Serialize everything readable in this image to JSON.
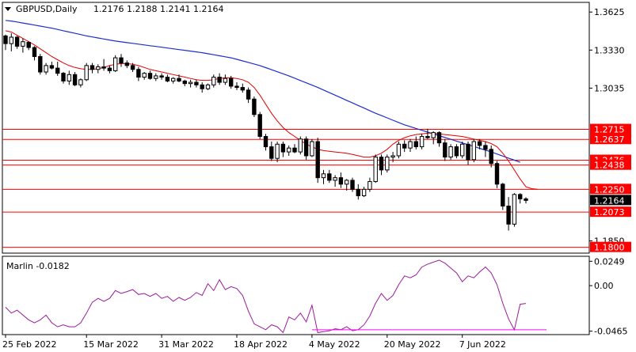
{
  "header": {
    "symbol_label": "GBPUSD,Daily",
    "ohlc_label": "1.2176 1.2188 1.2141 1.2164"
  },
  "indicator": {
    "label": "Marlin -0.0182"
  },
  "colors": {
    "background": "#ffffff",
    "candle": "#000000",
    "level_line": "#ff0000",
    "ma_fast": "#e00000",
    "ma_slow": "#1e2ecc",
    "oscillator": "#9b1c9b",
    "support_line": "#ff00ff",
    "price_tag_bg": "#000000",
    "level_tag_bg": "#ff0000"
  },
  "chart_data": {
    "type": "candlestick",
    "price_axis": {
      "ticks": [
        1.3625,
        1.333,
        1.3035,
        1.185
      ],
      "range": [
        1.1755,
        1.37
      ]
    },
    "current_price": 1.2164,
    "levels": [
      1.2715,
      1.2637,
      1.2476,
      1.2438,
      1.225,
      1.2073,
      1.18
    ],
    "level_tags": [
      "1.2715",
      "1.2637",
      "1.2476",
      "1.2438",
      "1.2250",
      "1.2073",
      "1.1800"
    ],
    "current_price_tag": "1.2164",
    "x_labels": [
      "25 Feb 2022",
      "15 Mar 2022",
      "31 Mar 2022",
      "18 Apr 2022",
      "4 May 2022",
      "20 May 2022",
      "7 Jun 2022"
    ],
    "x_label_index": [
      0,
      14,
      27,
      40,
      53,
      66,
      79
    ],
    "candles": [
      [
        1.344,
        1.345,
        1.333,
        1.338
      ],
      [
        1.338,
        1.346,
        1.332,
        1.343
      ],
      [
        1.343,
        1.344,
        1.334,
        1.336
      ],
      [
        1.336,
        1.342,
        1.331,
        1.3395
      ],
      [
        1.339,
        1.34,
        1.333,
        1.335
      ],
      [
        1.335,
        1.336,
        1.325,
        1.328
      ],
      [
        1.328,
        1.33,
        1.314,
        1.316
      ],
      [
        1.316,
        1.323,
        1.314,
        1.321
      ],
      [
        1.321,
        1.324,
        1.318,
        1.319
      ],
      [
        1.319,
        1.324,
        1.313,
        1.315
      ],
      [
        1.315,
        1.316,
        1.307,
        1.309
      ],
      [
        1.309,
        1.317,
        1.306,
        1.314
      ],
      [
        1.314,
        1.316,
        1.305,
        1.306
      ],
      [
        1.306,
        1.311,
        1.304,
        1.31
      ],
      [
        1.31,
        1.323,
        1.309,
        1.321
      ],
      [
        1.321,
        1.323,
        1.315,
        1.318
      ],
      [
        1.318,
        1.322,
        1.315,
        1.32
      ],
      [
        1.32,
        1.326,
        1.317,
        1.319
      ],
      [
        1.319,
        1.321,
        1.315,
        1.317
      ],
      [
        1.317,
        1.329,
        1.316,
        1.327
      ],
      [
        1.327,
        1.33,
        1.32,
        1.323
      ],
      [
        1.323,
        1.325,
        1.319,
        1.321
      ],
      [
        1.321,
        1.323,
        1.316,
        1.318
      ],
      [
        1.318,
        1.32,
        1.309,
        1.312
      ],
      [
        1.312,
        1.316,
        1.31,
        1.315
      ],
      [
        1.315,
        1.317,
        1.31,
        1.311
      ],
      [
        1.311,
        1.315,
        1.309,
        1.313
      ],
      [
        1.313,
        1.315,
        1.31,
        1.312
      ],
      [
        1.312,
        1.314,
        1.308,
        1.309
      ],
      [
        1.309,
        1.312,
        1.307,
        1.311
      ],
      [
        1.311,
        1.314,
        1.308,
        1.309
      ],
      [
        1.309,
        1.31,
        1.305,
        1.307
      ],
      [
        1.307,
        1.31,
        1.304,
        1.308
      ],
      [
        1.308,
        1.31,
        1.304,
        1.306
      ],
      [
        1.306,
        1.308,
        1.3,
        1.303
      ],
      [
        1.303,
        1.307,
        1.302,
        1.306
      ],
      [
        1.306,
        1.314,
        1.304,
        1.312
      ],
      [
        1.312,
        1.315,
        1.306,
        1.308
      ],
      [
        1.308,
        1.314,
        1.306,
        1.311
      ],
      [
        1.311,
        1.313,
        1.303,
        1.305
      ],
      [
        1.305,
        1.308,
        1.302,
        1.304
      ],
      [
        1.304,
        1.307,
        1.3,
        1.302
      ],
      [
        1.302,
        1.304,
        1.292,
        1.295
      ],
      [
        1.295,
        1.297,
        1.281,
        1.283
      ],
      [
        1.283,
        1.285,
        1.264,
        1.266
      ],
      [
        1.266,
        1.268,
        1.255,
        1.258
      ],
      [
        1.258,
        1.262,
        1.247,
        1.249
      ],
      [
        1.249,
        1.262,
        1.246,
        1.26
      ],
      [
        1.26,
        1.262,
        1.25,
        1.254
      ],
      [
        1.254,
        1.259,
        1.251,
        1.257
      ],
      [
        1.257,
        1.26,
        1.253,
        1.254
      ],
      [
        1.254,
        1.266,
        1.252,
        1.264
      ],
      [
        1.264,
        1.266,
        1.248,
        1.251
      ],
      [
        1.251,
        1.264,
        1.25,
        1.262
      ],
      [
        1.262,
        1.265,
        1.23,
        1.234
      ],
      [
        1.234,
        1.24,
        1.229,
        1.237
      ],
      [
        1.237,
        1.24,
        1.23,
        1.232
      ],
      [
        1.232,
        1.236,
        1.227,
        1.234
      ],
      [
        1.234,
        1.238,
        1.226,
        1.229
      ],
      [
        1.229,
        1.233,
        1.224,
        1.232
      ],
      [
        1.232,
        1.234,
        1.223,
        1.225
      ],
      [
        1.225,
        1.229,
        1.217,
        1.22
      ],
      [
        1.22,
        1.227,
        1.219,
        1.225
      ],
      [
        1.225,
        1.234,
        1.223,
        1.231
      ],
      [
        1.231,
        1.252,
        1.23,
        1.25
      ],
      [
        1.25,
        1.252,
        1.236,
        1.24
      ],
      [
        1.24,
        1.252,
        1.238,
        1.25
      ],
      [
        1.25,
        1.254,
        1.246,
        1.251
      ],
      [
        1.251,
        1.262,
        1.249,
        1.26
      ],
      [
        1.26,
        1.263,
        1.254,
        1.257
      ],
      [
        1.257,
        1.264,
        1.254,
        1.262
      ],
      [
        1.262,
        1.266,
        1.256,
        1.258
      ],
      [
        1.258,
        1.268,
        1.256,
        1.266
      ],
      [
        1.266,
        1.272,
        1.264,
        1.265
      ],
      [
        1.265,
        1.27,
        1.26,
        1.269
      ],
      [
        1.269,
        1.27,
        1.258,
        1.261
      ],
      [
        1.261,
        1.264,
        1.247,
        1.25
      ],
      [
        1.25,
        1.26,
        1.248,
        1.258
      ],
      [
        1.258,
        1.26,
        1.249,
        1.251
      ],
      [
        1.251,
        1.262,
        1.249,
        1.26
      ],
      [
        1.26,
        1.262,
        1.244,
        1.248
      ],
      [
        1.248,
        1.264,
        1.246,
        1.262
      ],
      [
        1.262,
        1.264,
        1.256,
        1.259
      ],
      [
        1.259,
        1.262,
        1.25,
        1.256
      ],
      [
        1.256,
        1.259,
        1.242,
        1.245
      ],
      [
        1.245,
        1.247,
        1.226,
        1.229
      ],
      [
        1.229,
        1.23,
        1.209,
        1.212
      ],
      [
        1.212,
        1.219,
        1.193,
        1.198
      ],
      [
        1.198,
        1.222,
        1.196,
        1.221
      ],
      [
        1.221,
        1.222,
        1.214,
        1.2176
      ],
      [
        1.2176,
        1.2188,
        1.2141,
        1.2164
      ]
    ],
    "ma_fast": [
      1.348,
      1.347,
      1.3445,
      1.342,
      1.3395,
      1.337,
      1.334,
      1.331,
      1.328,
      1.3255,
      1.323,
      1.321,
      1.3195,
      1.3185,
      1.318,
      1.318,
      1.3185,
      1.3195,
      1.321,
      1.322,
      1.3225,
      1.3225,
      1.322,
      1.321,
      1.3195,
      1.318,
      1.317,
      1.316,
      1.315,
      1.314,
      1.313,
      1.312,
      1.311,
      1.31,
      1.3095,
      1.3095,
      1.31,
      1.311,
      1.3115,
      1.3115,
      1.311,
      1.31,
      1.308,
      1.304,
      1.298,
      1.291,
      1.284,
      1.278,
      1.273,
      1.269,
      1.266,
      1.263,
      1.26,
      1.258,
      1.256,
      1.255,
      1.2545,
      1.254,
      1.2535,
      1.253,
      1.252,
      1.251,
      1.25,
      1.25,
      1.251,
      1.253,
      1.256,
      1.26,
      1.263,
      1.265,
      1.2665,
      1.2675,
      1.268,
      1.2685,
      1.2685,
      1.268,
      1.2675,
      1.267,
      1.2665,
      1.266,
      1.265,
      1.264,
      1.263,
      1.262,
      1.2605,
      1.258,
      1.253,
      1.247,
      1.24,
      1.233,
      1.227,
      1.2255,
      1.225
    ],
    "ma_slow": [
      1.356,
      1.3555,
      1.3548,
      1.354,
      1.3532,
      1.3524,
      1.3516,
      1.3508,
      1.35,
      1.349,
      1.348,
      1.347,
      1.346,
      1.345,
      1.344,
      1.3432,
      1.3424,
      1.3416,
      1.3408,
      1.34,
      1.3394,
      1.3388,
      1.3382,
      1.3376,
      1.337,
      1.3364,
      1.3358,
      1.3352,
      1.3346,
      1.334,
      1.3334,
      1.3328,
      1.3322,
      1.3316,
      1.331,
      1.3302,
      1.3294,
      1.3286,
      1.3278,
      1.327,
      1.3258,
      1.3246,
      1.3234,
      1.3222,
      1.321,
      1.3194,
      1.3178,
      1.3162,
      1.3146,
      1.313,
      1.3112,
      1.3094,
      1.3076,
      1.3058,
      1.304,
      1.302,
      1.3,
      1.298,
      1.296,
      1.294,
      1.292,
      1.29,
      1.288,
      1.286,
      1.284,
      1.2822,
      1.2804,
      1.2786,
      1.2768,
      1.275,
      1.2736,
      1.2722,
      1.2708,
      1.2694,
      1.268,
      1.2666,
      1.2652,
      1.2638,
      1.2624,
      1.261,
      1.2596,
      1.2582,
      1.2568,
      1.2554,
      1.254,
      1.2524,
      1.2508,
      1.2492,
      1.2476,
      1.246
    ],
    "oscillator": {
      "label": "Marlin -0.0182",
      "ticks": [
        0.0249,
        0.0,
        -0.0465
      ],
      "tick_labels": [
        "0.0249",
        "0.00",
        "-0.0465"
      ],
      "range": [
        -0.05,
        0.03
      ],
      "values": [
        -0.022,
        -0.028,
        -0.025,
        -0.03,
        -0.035,
        -0.038,
        -0.035,
        -0.03,
        -0.038,
        -0.042,
        -0.04,
        -0.042,
        -0.042,
        -0.038,
        -0.028,
        -0.017,
        -0.013,
        -0.016,
        -0.013,
        -0.005,
        -0.008,
        -0.006,
        -0.004,
        -0.009,
        -0.008,
        -0.011,
        -0.008,
        -0.013,
        -0.011,
        -0.016,
        -0.012,
        -0.015,
        -0.012,
        -0.007,
        -0.01,
        0.002,
        -0.005,
        0.006,
        -0.004,
        -0.001,
        -0.003,
        -0.01,
        -0.026,
        -0.039,
        -0.042,
        -0.045,
        -0.04,
        -0.042,
        -0.048,
        -0.032,
        -0.035,
        -0.028,
        -0.037,
        -0.02,
        -0.048,
        -0.047,
        -0.046,
        -0.044,
        -0.045,
        -0.042,
        -0.046,
        -0.045,
        -0.04,
        -0.031,
        -0.018,
        -0.008,
        -0.015,
        -0.01,
        0.001,
        0.01,
        0.008,
        0.011,
        0.019,
        0.022,
        0.024,
        0.026,
        0.023,
        0.018,
        0.013,
        0.004,
        0.01,
        0.008,
        0.014,
        0.019,
        0.013,
        0.001,
        -0.018,
        -0.034,
        -0.045,
        -0.019,
        -0.0182
      ],
      "support_line": {
        "start_index": 53,
        "value": -0.045
      }
    }
  }
}
